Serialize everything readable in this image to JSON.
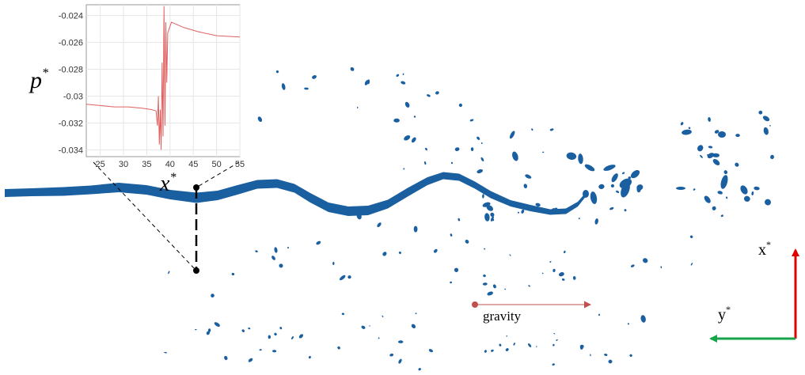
{
  "labels": {
    "inset_ylabel": "p",
    "inset_ylabel_sup": "*",
    "probe_label": "x",
    "probe_label_sup": "*",
    "gravity": "gravity",
    "axis_x": "x",
    "axis_x_sup": "*",
    "axis_y": "y",
    "axis_y_sup": "*"
  },
  "colors": {
    "jet": "#1a5fa0",
    "trace": "#e06060",
    "gravity_arrow": "#c0504d",
    "axis_x_arrow": "#e00000",
    "axis_y_arrow": "#16a34a"
  },
  "chart_data": {
    "type": "line",
    "xlim": [
      22,
      55
    ],
    "ylim": [
      -0.0345,
      -0.0232
    ],
    "x_ticks": [
      25,
      30,
      35,
      40,
      45,
      50,
      55
    ],
    "y_ticks": [
      -0.024,
      -0.026,
      -0.028,
      -0.03,
      -0.032,
      -0.034
    ],
    "y_tick_labels": [
      "-0.024",
      "-0.026",
      "-0.028",
      "-0.03",
      "-0.032",
      "-0.034"
    ],
    "grid": true,
    "series": [
      {
        "x": [
          22,
          25,
          28,
          31,
          34,
          36,
          37,
          37.3,
          37.5,
          37.7,
          37.9,
          38.1,
          38.3,
          38.5,
          38.7,
          38.9,
          39.1,
          39.3,
          39.5,
          39.8,
          40.3,
          41,
          43,
          46,
          50,
          55
        ],
        "y": [
          -0.0306,
          -0.0307,
          -0.0308,
          -0.0308,
          -0.0309,
          -0.031,
          -0.0311,
          -0.0322,
          -0.03,
          -0.0336,
          -0.031,
          -0.034,
          -0.0275,
          -0.033,
          -0.0233,
          -0.0322,
          -0.0245,
          -0.029,
          -0.0253,
          -0.025,
          -0.0245,
          -0.0246,
          -0.0249,
          -0.0252,
          -0.0255,
          -0.0256
        ]
      }
    ]
  }
}
